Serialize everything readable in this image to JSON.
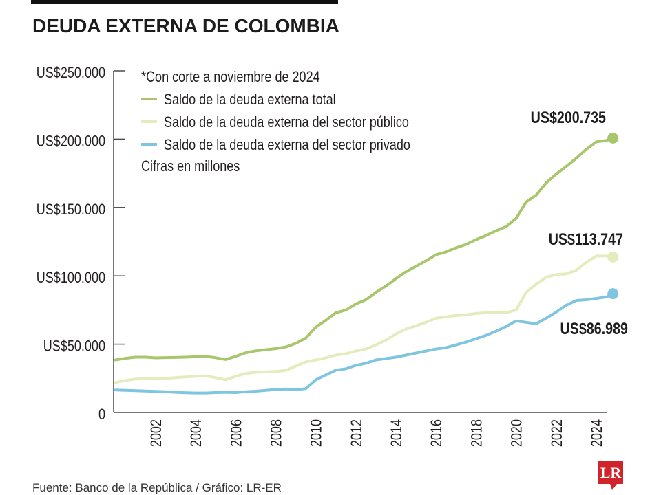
{
  "chart_data": {
    "type": "line",
    "title": "DEUDA EXTERNA DE COLOMBIA",
    "note": "*Con corte a noviembre de 2024",
    "units": "Cifras en millones",
    "x": [
      "2000-01",
      "2000-07",
      "2001-01",
      "2001-07",
      "2002-01",
      "2002-07",
      "2003-01",
      "2003-07",
      "2004-01",
      "2004-07",
      "2005-01",
      "2005-07",
      "2006-01",
      "2006-07",
      "2007-01",
      "2007-07",
      "2008-01",
      "2008-07",
      "2009-01",
      "2009-07",
      "2010-01",
      "2010-07",
      "2011-01",
      "2011-07",
      "2012-01",
      "2012-07",
      "2013-01",
      "2013-07",
      "2014-01",
      "2014-07",
      "2015-01",
      "2015-07",
      "2016-01",
      "2016-07",
      "2017-01",
      "2017-07",
      "2018-01",
      "2018-07",
      "2019-01",
      "2019-07",
      "2020-01",
      "2020-07",
      "2021-01",
      "2021-07",
      "2022-01",
      "2022-07",
      "2023-01",
      "2023-07",
      "2024-01",
      "2024-07",
      "2024-11"
    ],
    "series": [
      {
        "name": "Saldo de la deuda externa total",
        "color": "#a8c66b",
        "end_label": "US$200.735",
        "values": [
          38500,
          39700,
          40500,
          40500,
          40000,
          40200,
          40300,
          40500,
          40800,
          41100,
          40100,
          38800,
          41100,
          43700,
          45100,
          46000,
          46800,
          48000,
          50600,
          54500,
          62500,
          67500,
          73000,
          75000,
          79500,
          82500,
          88000,
          92500,
          98000,
          103000,
          107000,
          111000,
          115500,
          117500,
          120500,
          123000,
          126500,
          129500,
          133000,
          136000,
          142000,
          154000,
          159000,
          168000,
          174500,
          180000,
          186000,
          192500,
          198000,
          199000,
          200735
        ]
      },
      {
        "name": "Saldo de la deuda externa del sector público",
        "color": "#e4ecbd",
        "end_label": "US$113.747",
        "values": [
          22000,
          23500,
          24500,
          24800,
          24500,
          25000,
          25500,
          26000,
          26500,
          26800,
          25500,
          24000,
          26500,
          28500,
          29500,
          29800,
          30000,
          30800,
          34000,
          37000,
          38500,
          40000,
          42000,
          43000,
          45000,
          46500,
          49500,
          53000,
          57500,
          61000,
          63500,
          66000,
          69000,
          70000,
          71000,
          71500,
          72500,
          73000,
          73500,
          73000,
          75000,
          88000,
          94000,
          99000,
          101000,
          101500,
          104000,
          110000,
          114500,
          114500,
          113747
        ]
      },
      {
        "name": "Saldo de la deuda externa del sector privado",
        "color": "#7fc5df",
        "end_label": "US$86.989",
        "values": [
          16500,
          16200,
          16000,
          15700,
          15500,
          15200,
          14800,
          14500,
          14300,
          14300,
          14600,
          14800,
          14600,
          15200,
          15600,
          16200,
          16800,
          17200,
          16600,
          17500,
          24000,
          27500,
          31000,
          32000,
          34500,
          36000,
          38500,
          39500,
          40500,
          42000,
          43500,
          45000,
          46500,
          47500,
          49500,
          51500,
          54000,
          56500,
          59500,
          63000,
          67000,
          66000,
          65000,
          69000,
          73500,
          78500,
          82000,
          82500,
          83500,
          84500,
          86989
        ]
      }
    ],
    "ylim": [
      0,
      250000
    ],
    "xlim": [
      "2000-01",
      "2024-11"
    ],
    "y_tick_values": [
      0,
      50000,
      100000,
      150000,
      200000,
      250000
    ],
    "y_tick_labels": [
      "0",
      "US$50.000",
      "US$100.000",
      "US$150.000",
      "US$200.000",
      "US$250.000"
    ],
    "x_tick_labels": [
      "2002",
      "2004",
      "2006",
      "2008",
      "2010",
      "2012",
      "2014",
      "2016",
      "2018",
      "2020",
      "2022",
      "2024"
    ],
    "grid": false,
    "legend_position": "top-left"
  },
  "footer": {
    "source": "Fuente: Banco de la República / Gráfico: LR-ER"
  },
  "logo": {
    "text": "LR",
    "color": "#d1232a"
  }
}
